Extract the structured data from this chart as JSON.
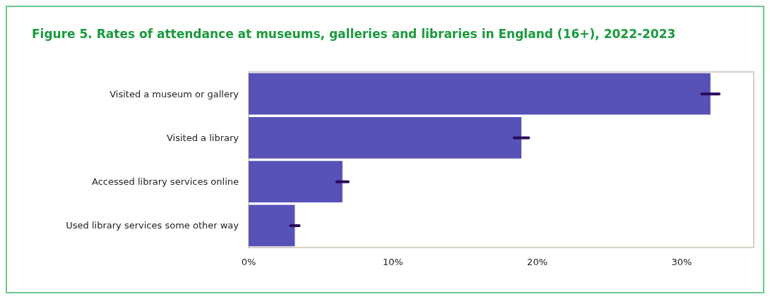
{
  "chart_data": {
    "type": "bar",
    "orientation": "horizontal",
    "title": "Figure 5. Rates of attendance at museums, galleries and libraries in England (16+), 2022-2023",
    "categories": [
      "Visited a museum or gallery",
      "Visited a library",
      "Accessed library services online",
      "Used library services some other way"
    ],
    "values": [
      32.0,
      18.9,
      6.5,
      3.2
    ],
    "errors": [
      0.6,
      0.5,
      0.4,
      0.3
    ],
    "color": "#5652b8",
    "xlim": [
      0,
      35
    ],
    "xticks": [
      {
        "value": 0,
        "label": "0%"
      },
      {
        "value": 10,
        "label": "10%"
      },
      {
        "value": 20,
        "label": "20%"
      },
      {
        "value": 30,
        "label": "30%"
      }
    ],
    "grid": false
  }
}
